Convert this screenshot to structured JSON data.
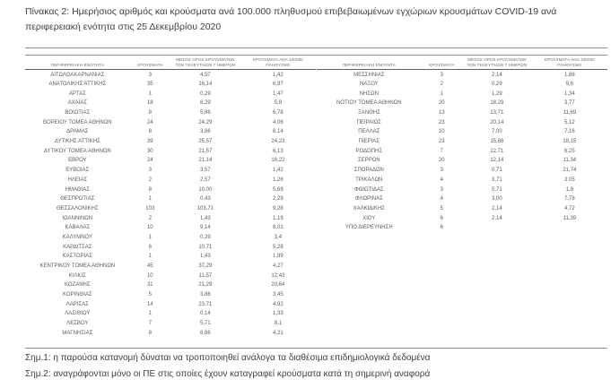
{
  "title": "Πίνακας 2:  Ημερήσιος αριθμός και κρούσματα ανά 100.000 πληθυσμού επιβεβαιωμένων εγχώριων κρουσμάτων COVID-19 ανά περιφερειακή ενότητα στις 25 Δεκεμβρίου 2020",
  "table": {
    "headers": {
      "region": "ΠΕΡΙΦΕΡΕΙΑΚΗ ΕΝΟΤΗΤΑ",
      "cases": "ΚΡΟΥΣΜΑΤΑ",
      "avg7": "ΜΕΣΟΣ ΟΡΟΣ ΚΡΟΥΣΜΑΤΩΝ ΤΩΝ ΤΕΛΕΥΤΑΙΩΝ 7 ΗΜΕΡΩΝ",
      "per100k": "ΚΡΟΥΣΜΑΤΑ ΑΝΑ 100000 ΠΛΗΘΥΣΜΟ"
    },
    "left_rows": [
      [
        "ΑΙΤΩΛΟΑΚΑΡΝΑΝΙΑΣ",
        "3",
        "4,57",
        "1,42"
      ],
      [
        "ΑΝΑΤΟΛΙΚΗΣ ΑΤΤΙΚΗΣ",
        "35",
        "16,14",
        "6,97"
      ],
      [
        "ΑΡΤΑΣ",
        "1",
        "0,29",
        "1,47"
      ],
      [
        "ΑΧΑΪΑΣ",
        "18",
        "8,29",
        "5,8"
      ],
      [
        "ΒΟΙΩΤΙΑΣ",
        "8",
        "5,86",
        "6,78"
      ],
      [
        "ΒΟΡΕΙΟΥ ΤΟΜΕΑ ΑΘΗΝΩΝ",
        "24",
        "24,29",
        "4,06"
      ],
      [
        "ΔΡΑΜΑΣ",
        "8",
        "3,86",
        "8,14"
      ],
      [
        "ΔΥΤΙΚΗΣ ΑΤΤΙΚΗΣ",
        "39",
        "25,57",
        "24,23"
      ],
      [
        "ΔΥΤΙΚΟΥ ΤΟΜΕΑ ΑΘΗΝΩΝ",
        "30",
        "21,57",
        "6,13"
      ],
      [
        "ΕΒΡΟΥ",
        "24",
        "21,14",
        "16,22"
      ],
      [
        "ΕΥΒΟΙΑΣ",
        "3",
        "3,57",
        "1,42"
      ],
      [
        "ΗΛΕΙΑΣ",
        "2",
        "2,57",
        "1,26"
      ],
      [
        "ΗΜΑΘΙΑΣ",
        "8",
        "10,00",
        "5,69"
      ],
      [
        "ΘΕΣΠΡΩΤΙΑΣ",
        "1",
        "0,43",
        "2,29"
      ],
      [
        "ΘΕΣΣΑΛΟΝΙΚΗΣ",
        "103",
        "103,71",
        "9,28"
      ],
      [
        "ΙΩΑΝΝΙΝΩΝ",
        "2",
        "1,43",
        "1,19"
      ],
      [
        "ΚΑΒΑΛΑΣ",
        "10",
        "9,14",
        "8,01"
      ],
      [
        "ΚΑΛΥΜΝΟΥ",
        "1",
        "0,29",
        "3,4"
      ],
      [
        "ΚΑΡΔΙΤΣΑΣ",
        "6",
        "10,71",
        "5,28"
      ],
      [
        "ΚΑΣΤΟΡΙΑΣ",
        "1",
        "1,43",
        "1,99"
      ],
      [
        "ΚΕΝΤΡΙΚΟΥ ΤΟΜΕΑ ΑΘΗΝΩΝ",
        "45",
        "37,29",
        "4,27"
      ],
      [
        "ΚΙΛΚΙΣ",
        "10",
        "11,57",
        "12,43"
      ],
      [
        "ΚΟΖΑΝΗΣ",
        "31",
        "21,29",
        "20,64"
      ],
      [
        "ΚΟΡΙΝΘΙΑΣ",
        "5",
        "3,86",
        "3,45"
      ],
      [
        "ΛΑΡΙΣΑΣ",
        "14",
        "23,71",
        "4,92"
      ],
      [
        "ΛΑΣΙΘΙΟΥ",
        "1",
        "0,14",
        "1,33"
      ],
      [
        "ΛΕΣΒΟΥ",
        "7",
        "5,71",
        "8,1"
      ],
      [
        "ΜΑΓΝΗΣΙΑΣ",
        "8",
        "8,86",
        "4,21"
      ]
    ],
    "right_rows": [
      [
        "ΜΕΣΣΗΝΙΑΣ",
        "3",
        "2,14",
        "1,88"
      ],
      [
        "ΝΑΞΟΥ",
        "2",
        "0,29",
        "9,6"
      ],
      [
        "ΝΗΣΩΝ",
        "1",
        "1,29",
        "1,34"
      ],
      [
        "ΝΟΤΙΟΥ ΤΟΜΕΑ ΑΘΗΝΩΝ",
        "20",
        "18,29",
        "3,77"
      ],
      [
        "ΞΑΝΘΗΣ",
        "13",
        "13,71",
        "11,69"
      ],
      [
        "ΠΕΙΡΑΙΩΣ",
        "23",
        "20,14",
        "5,12"
      ],
      [
        "ΠΕΛΛΑΣ",
        "10",
        "7,00",
        "7,16"
      ],
      [
        "ΠΙΕΡΙΑΣ",
        "23",
        "15,86",
        "18,15"
      ],
      [
        "ΡΟΔΟΠΗΣ",
        "7",
        "12,71",
        "6,25"
      ],
      [
        "ΣΕΡΡΩΝ",
        "20",
        "12,14",
        "11,34"
      ],
      [
        "ΣΠΟΡΑΔΩΝ",
        "3",
        "0,71",
        "21,74"
      ],
      [
        "ΤΡΙΚΑΛΩΝ",
        "4",
        "3,71",
        "3,05"
      ],
      [
        "ΦΘΙΩΤΙΔΑΣ",
        "3",
        "5,71",
        "1,9"
      ],
      [
        "ΦΛΩΡΙΝΑΣ",
        "4",
        "3,00",
        "7,78"
      ],
      [
        "ΧΑΛΚΙΔΙΚΗΣ",
        "5",
        "2,14",
        "4,72"
      ],
      [
        "ΧΙΟΥ",
        "6",
        "2,14",
        "11,39"
      ],
      [
        "ΥΠΟ ΔΙΕΡΕΥΝΗΣΗ",
        "6",
        "",
        ""
      ]
    ]
  },
  "notes": [
    "Σημ.1: η παρούσα κατανομή δύναται να τροποποιηθεί ανάλογα τα διαθέσιμα επιδημιολογικά δεδομένα",
    "Σημ.2: αναγράφονται μόνο οι ΠΕ στις οποίες έχουν καταγραφεί κρούσματα κατά τη σημερινή αναφορά"
  ]
}
